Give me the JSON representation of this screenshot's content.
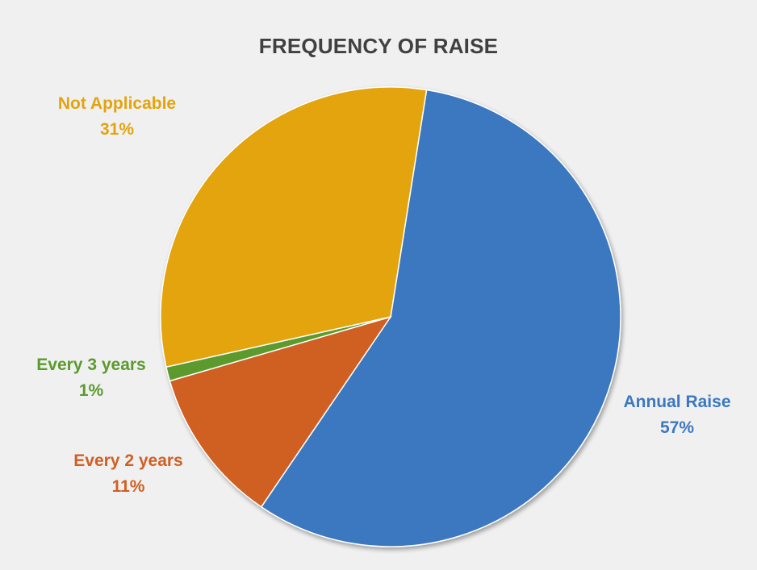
{
  "chart_data": {
    "type": "pie",
    "title": "FREQUENCY OF RAISE",
    "slices": [
      {
        "label": "Annual Raise",
        "value": 57,
        "display": "57%",
        "color": "#3b78c0"
      },
      {
        "label": "Every 2 years",
        "value": 11,
        "display": "11%",
        "color": "#d05f24"
      },
      {
        "label": "Every 3 years",
        "value": 1,
        "display": "1%",
        "color": "#5b9a2e"
      },
      {
        "label": "Not Applicable",
        "value": 31,
        "display": "31%",
        "color": "#e3a40c"
      }
    ],
    "legend": "none",
    "grid": false
  }
}
